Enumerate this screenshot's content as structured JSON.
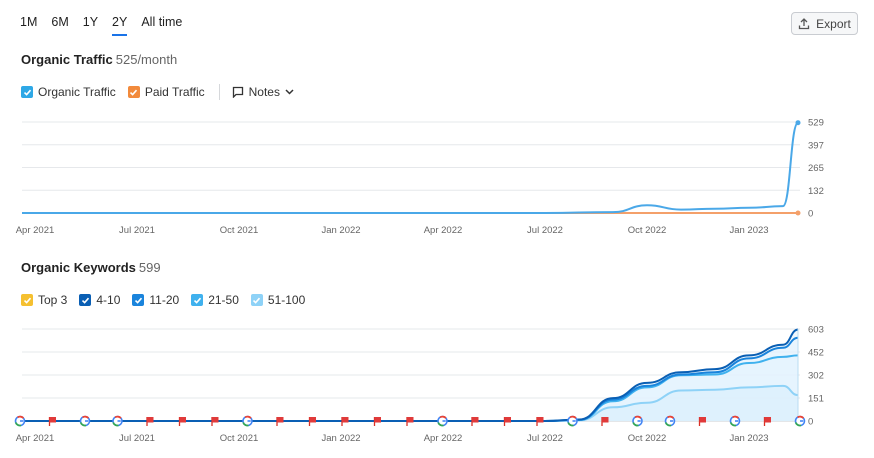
{
  "range_tabs": [
    {
      "label": "1M",
      "active": false
    },
    {
      "label": "6M",
      "active": false
    },
    {
      "label": "1Y",
      "active": false
    },
    {
      "label": "2Y",
      "active": true
    },
    {
      "label": "All time",
      "active": false
    }
  ],
  "export": {
    "label": "Export",
    "icon": "export-icon"
  },
  "traffic": {
    "title": "Organic Traffic",
    "value": "525/month",
    "legend": [
      {
        "label": "Organic Traffic",
        "color": "#2ea8e6",
        "checked": true
      },
      {
        "label": "Paid Traffic",
        "color": "#f28a3c",
        "checked": true
      }
    ],
    "notes_label": "Notes"
  },
  "keywords": {
    "title": "Organic Keywords",
    "value": "599",
    "legend": [
      {
        "label": "Top 3",
        "color": "#f5c030",
        "checked": true
      },
      {
        "label": "4-10",
        "color": "#0a5fb4",
        "checked": true
      },
      {
        "label": "11-20",
        "color": "#1a84dc",
        "checked": true
      },
      {
        "label": "21-50",
        "color": "#3fb1ee",
        "checked": true
      },
      {
        "label": "51-100",
        "color": "#8ed2f7",
        "checked": true
      }
    ]
  },
  "chart_data": [
    {
      "type": "line",
      "x_labels": [
        "Apr 2021",
        "Jul 2021",
        "Oct 2021",
        "Jan 2022",
        "Apr 2022",
        "Jul 2022",
        "Oct 2022",
        "Jan 2023"
      ],
      "y_ticks": [
        "529",
        "397",
        "265",
        "132",
        "0"
      ],
      "ylim": [
        0,
        529
      ],
      "x": [
        "Apr 2021",
        "Jul 2021",
        "Oct 2021",
        "Jan 2022",
        "Apr 2022",
        "Jul 2022",
        "Sep 2022",
        "Oct 2022",
        "Nov 2022",
        "Dec 2022",
        "Jan 2023",
        "Feb 2023",
        "Mar 2023"
      ],
      "series": [
        {
          "name": "Organic Traffic",
          "color": "#4aa8e8",
          "values": [
            0,
            0,
            0,
            0,
            0,
            0,
            5,
            45,
            20,
            25,
            30,
            40,
            525
          ]
        },
        {
          "name": "Paid Traffic",
          "color": "#f4a06a",
          "values": [
            0,
            0,
            0,
            0,
            0,
            0,
            0,
            0,
            0,
            0,
            0,
            0,
            0
          ]
        }
      ]
    },
    {
      "type": "area",
      "x_labels": [
        "Apr 2021",
        "Jul 2021",
        "Oct 2021",
        "Jan 2022",
        "Apr 2022",
        "Jul 2022",
        "Oct 2022",
        "Jan 2023"
      ],
      "y_ticks": [
        "603",
        "452",
        "302",
        "151",
        "0"
      ],
      "ylim": [
        0,
        603
      ],
      "x": [
        "Apr 2021",
        "Jul 2021",
        "Oct 2021",
        "Jan 2022",
        "Apr 2022",
        "Jul 2022",
        "Aug 2022",
        "Sep 2022",
        "Oct 2022",
        "Nov 2022",
        "Dec 2022",
        "Jan 2023",
        "Feb 2023",
        "Mar 2023"
      ],
      "series": [
        {
          "name": "4-10",
          "color": "#0a5fb4",
          "values": [
            0,
            0,
            0,
            0,
            0,
            0,
            10,
            150,
            250,
            320,
            340,
            430,
            500,
            599
          ]
        },
        {
          "name": "11-20",
          "color": "#1a84dc",
          "values": [
            0,
            0,
            0,
            0,
            0,
            0,
            8,
            140,
            230,
            305,
            320,
            410,
            480,
            545
          ]
        },
        {
          "name": "21-50",
          "color": "#3fb1ee",
          "values": [
            0,
            0,
            0,
            0,
            0,
            0,
            6,
            130,
            220,
            300,
            305,
            380,
            420,
            430
          ]
        },
        {
          "name": "51-100",
          "color": "#8ed2f7",
          "values": [
            0,
            0,
            0,
            0,
            0,
            0,
            4,
            90,
            120,
            200,
            205,
            220,
            230,
            170
          ]
        }
      ],
      "markers": [
        "google",
        "flag",
        "google",
        "google",
        "flag",
        "flag",
        "flag",
        "google",
        "flag",
        "flag",
        "flag",
        "flag",
        "flag",
        "google",
        "flag",
        "flag",
        "flag",
        "google",
        "flag",
        "google",
        "google",
        "flag",
        "google",
        "flag",
        "google"
      ]
    }
  ]
}
